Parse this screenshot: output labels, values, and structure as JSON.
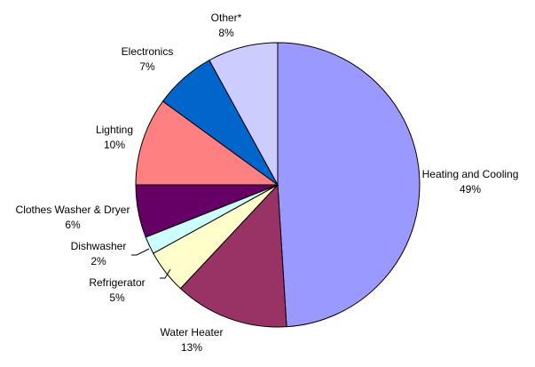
{
  "chart_data": {
    "type": "pie",
    "title": "",
    "start_angle_deg": 0,
    "direction": "clockwise",
    "slices": [
      {
        "label": "Heating and Cooling",
        "pct_label": "49%",
        "value": 49,
        "color": "#9999ff"
      },
      {
        "label": "Water Heater",
        "pct_label": "13%",
        "value": 13,
        "color": "#993366"
      },
      {
        "label": "Refrigerator",
        "pct_label": "5%",
        "value": 5,
        "color": "#ffffcc"
      },
      {
        "label": "Dishwasher",
        "pct_label": "2%",
        "value": 2,
        "color": "#ccffff"
      },
      {
        "label": "Clothes Washer & Dryer",
        "pct_label": "6%",
        "value": 6,
        "color": "#660066"
      },
      {
        "label": "Lighting",
        "pct_label": "10%",
        "value": 10,
        "color": "#ff8080"
      },
      {
        "label": "Electronics",
        "pct_label": "7%",
        "value": 7,
        "color": "#0066cc"
      },
      {
        "label": "Other*",
        "pct_label": "8%",
        "value": 8,
        "color": "#ccccff"
      }
    ]
  }
}
